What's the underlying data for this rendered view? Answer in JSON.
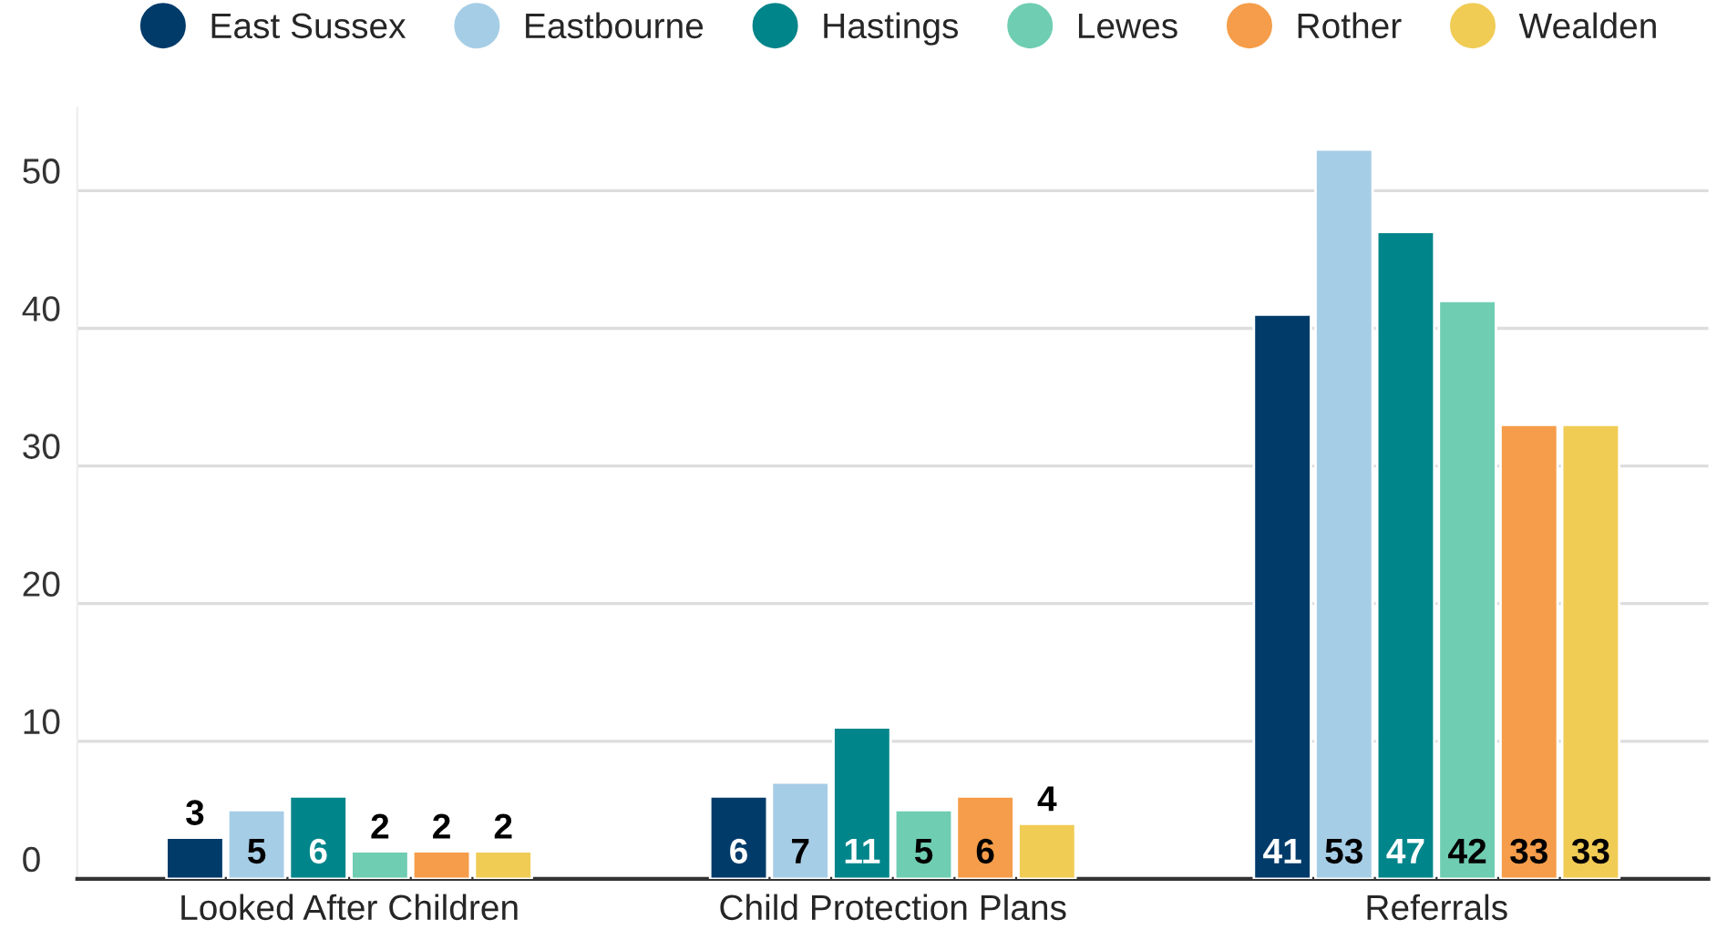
{
  "chart_data": {
    "type": "bar",
    "categories": [
      "Looked After Children",
      "Child Protection Plans",
      "Referrals"
    ],
    "series": [
      {
        "name": "East Sussex",
        "color": "#003b6a",
        "values": [
          3,
          6,
          41
        ]
      },
      {
        "name": "Eastbourne",
        "color": "#a6cde6",
        "values": [
          5,
          7,
          53
        ]
      },
      {
        "name": "Hastings",
        "color": "#00858a",
        "values": [
          6,
          11,
          47
        ]
      },
      {
        "name": "Lewes",
        "color": "#6fcdb2",
        "values": [
          2,
          5,
          42
        ]
      },
      {
        "name": "Rother",
        "color": "#f59d4a",
        "values": [
          2,
          6,
          33
        ]
      },
      {
        "name": "Wealden",
        "color": "#f0cc55",
        "values": [
          2,
          4,
          33
        ]
      }
    ],
    "ylim": [
      0,
      56
    ],
    "yticks": [
      0,
      10,
      20,
      30,
      40,
      50
    ],
    "grid": "y",
    "legend": "top",
    "data_labels": true
  }
}
